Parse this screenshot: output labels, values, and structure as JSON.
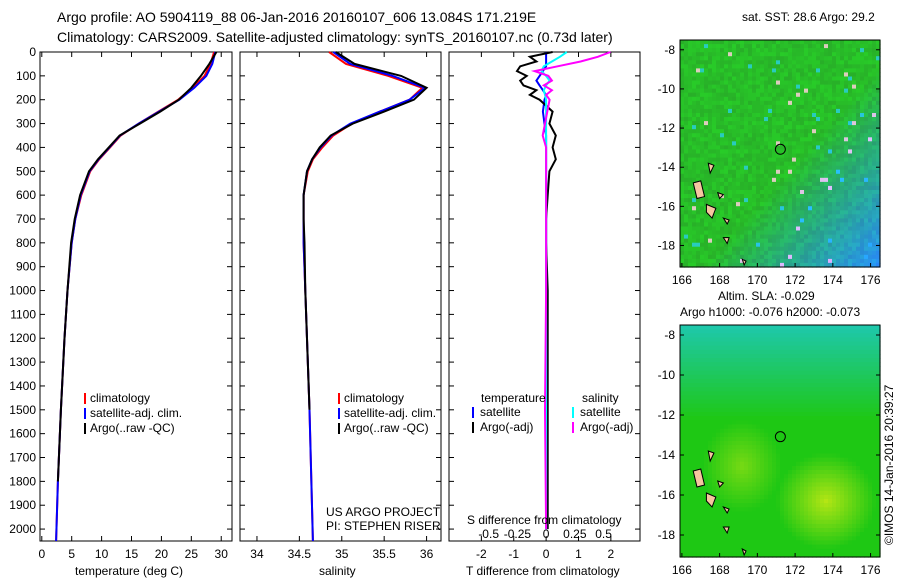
{
  "title_line1": "Argo profile: AO 5904119_88 06-Jan-2016 20160107_606 13.084S 171.219E",
  "title_line2": "Climatology: CARS2009. Satellite-adjusted climatology: synTS_20160107.nc (0.73d later)",
  "depth_ticks": [
    0,
    100,
    200,
    300,
    400,
    500,
    600,
    700,
    800,
    900,
    1000,
    1100,
    1200,
    1300,
    1400,
    1500,
    1600,
    1700,
    1800,
    1900,
    2000
  ],
  "colors": {
    "climatology": "#ff0000",
    "satellite": "#0000ff",
    "argo": "#000000",
    "sal_satellite": "#00ffff",
    "sal_argo": "#ff00ff"
  },
  "chart_data": [
    {
      "type": "line",
      "xlabel": "temperature (deg C)",
      "ylabel": "depth",
      "xlim": [
        -0.3,
        31.8
      ],
      "ylim": [
        2050,
        0
      ],
      "xticks": [
        0,
        5,
        10,
        15,
        20,
        25,
        30
      ],
      "legend": [
        "climatology",
        "satellite-adj. clim.",
        "Argo(..raw -QC)"
      ],
      "legend_position": "bottom-center",
      "depth": [
        0,
        50,
        100,
        150,
        200,
        250,
        300,
        350,
        400,
        450,
        500,
        600,
        700,
        800,
        1000,
        1200,
        1500,
        1800,
        2050
      ],
      "series": [
        {
          "name": "climatology",
          "color": "#ff0000",
          "values": [
            28.8,
            28.2,
            27.2,
            25.2,
            22.8,
            19.5,
            16.2,
            13.2,
            11.4,
            9.6,
            8.1,
            6.6,
            5.6,
            5.0,
            4.3,
            3.8,
            3.2,
            2.7,
            2.4
          ]
        },
        {
          "name": "satellite-adj. clim.",
          "color": "#0000ff",
          "values": [
            29.0,
            28.5,
            27.5,
            25.5,
            23.0,
            19.6,
            16.2,
            13.1,
            11.3,
            9.5,
            8.0,
            6.5,
            5.6,
            5.0,
            4.3,
            3.8,
            3.2,
            2.7,
            2.4
          ]
        },
        {
          "name": "Argo(..raw -QC)",
          "color": "#000000",
          "values": [
            29.2,
            28.0,
            26.6,
            25.0,
            22.9,
            19.8,
            16.4,
            13.0,
            11.2,
            9.4,
            7.9,
            6.4,
            5.5,
            4.9,
            4.3,
            3.8,
            3.2,
            2.7,
            null
          ]
        }
      ]
    },
    {
      "type": "line",
      "xlabel": "salinity",
      "ylabel": "depth",
      "xlim": [
        33.8,
        36.17
      ],
      "ylim": [
        2050,
        0
      ],
      "xticks": [
        34,
        34.5,
        35,
        35.5,
        36
      ],
      "legend": [
        "climatology",
        "satellite-adj. clim.",
        "Argo(..raw -QC)"
      ],
      "legend_position": "bottom-center",
      "annotation": [
        "US ARGO PROJECT",
        "PI: STEPHEN RISER"
      ],
      "depth": [
        0,
        50,
        100,
        150,
        200,
        250,
        300,
        350,
        400,
        450,
        500,
        600,
        700,
        800,
        1000,
        1500,
        2050
      ],
      "series": [
        {
          "name": "climatology",
          "color": "#ff0000",
          "values": [
            34.85,
            35.05,
            35.55,
            35.95,
            35.8,
            35.45,
            35.12,
            34.9,
            34.77,
            34.66,
            34.6,
            34.55,
            34.55,
            34.55,
            34.57,
            34.62,
            34.66
          ]
        },
        {
          "name": "satellite-adj. clim.",
          "color": "#0000ff",
          "values": [
            34.9,
            35.1,
            35.6,
            35.98,
            35.8,
            35.45,
            35.1,
            34.88,
            34.75,
            34.65,
            34.59,
            34.55,
            34.55,
            34.55,
            34.57,
            34.62,
            34.66
          ]
        },
        {
          "name": "Argo(..raw -QC)",
          "color": "#000000",
          "values": [
            34.93,
            35.15,
            35.7,
            36.0,
            35.85,
            35.5,
            35.13,
            34.87,
            34.74,
            34.65,
            34.59,
            34.55,
            34.55,
            34.56,
            34.57,
            34.62,
            null
          ]
        }
      ]
    },
    {
      "type": "line",
      "xlabel": "T difference from climatology",
      "xlabel2": "S difference from climatology",
      "xlim": [
        -3.0,
        2.9
      ],
      "ylim": [
        2050,
        0
      ],
      "xticks": [
        -2,
        -1,
        0,
        1,
        2
      ],
      "xticks_s": [
        -0.5,
        -0.25,
        0,
        0.25,
        0.5
      ],
      "legend_headers": [
        "temperature",
        "salinity"
      ],
      "legend": [
        "satellite",
        "Argo(-adj)",
        "satellite",
        "Argo(-adj)"
      ],
      "legend_position": "bottom-center",
      "depth": [
        0,
        20,
        40,
        60,
        80,
        100,
        120,
        140,
        160,
        180,
        200,
        250,
        300,
        350,
        400,
        450,
        500,
        600,
        700,
        800,
        1000,
        1500,
        2000
      ],
      "series": [
        {
          "name": "T satellite",
          "color": "#0000ff",
          "scale": "T",
          "values": [
            0,
            0,
            0,
            0,
            -0.1,
            -0.2,
            -0.3,
            -0.2,
            -0.1,
            0,
            -0.05,
            -0.1,
            -0.05,
            0,
            0,
            0,
            0,
            0,
            0,
            0,
            0,
            0,
            0
          ]
        },
        {
          "name": "T Argo(-adj)",
          "color": "#000000",
          "scale": "T",
          "values": [
            0.2,
            -0.5,
            -0.3,
            -0.8,
            -0.9,
            -0.6,
            -0.8,
            -0.7,
            -0.3,
            -0.5,
            -0.2,
            0.2,
            0.1,
            0.3,
            0.2,
            0.3,
            0.1,
            0.05,
            0,
            0,
            0.05,
            0.05,
            0.05
          ]
        },
        {
          "name": "S satellite",
          "color": "#00ffff",
          "scale": "S",
          "values": [
            0.18,
            0.12,
            0.05,
            -0.02,
            -0.04,
            0.0,
            0.03,
            0.0,
            -0.02,
            -0.01,
            0.0,
            0.0,
            0.0,
            0.0,
            0.0,
            0.0,
            0.0,
            0.0,
            0.0,
            0.0,
            0.0,
            0.0,
            0.0
          ]
        },
        {
          "name": "S Argo(-adj)",
          "color": "#ff00ff",
          "scale": "S",
          "values": [
            0.56,
            0.45,
            0.3,
            0.1,
            -0.1,
            0.02,
            0.05,
            -0.02,
            0.05,
            0.0,
            0.03,
            0.01,
            -0.01,
            -0.03,
            0.0,
            0.0,
            0.0,
            0.0,
            0.0,
            0.0,
            0.0,
            -0.01,
            0.0
          ]
        }
      ]
    },
    {
      "type": "heatmap",
      "title": "sat. SST: 28.6 Argo: 29.2",
      "xlim": [
        165.9,
        176.5
      ],
      "ylim": [
        -19.1,
        -7.5
      ],
      "xticks": [
        166,
        168,
        170,
        172,
        174,
        176
      ],
      "yticks": [
        -8,
        -10,
        -12,
        -14,
        -16,
        -18
      ],
      "marker": {
        "lon": 171.219,
        "lat": -13.084
      }
    },
    {
      "type": "heatmap",
      "title": "Altim. SLA: -0.029",
      "subtitle": "Argo h1000: -0.076 h2000: -0.073",
      "xlim": [
        165.9,
        176.5
      ],
      "ylim": [
        -19.1,
        -7.5
      ],
      "xticks": [
        166,
        168,
        170,
        172,
        174,
        176
      ],
      "yticks": [
        -8,
        -10,
        -12,
        -14,
        -16,
        -18
      ],
      "marker": {
        "lon": 171.219,
        "lat": -13.084
      }
    }
  ],
  "credit": "©IMOS 14-Jan-2016 20:39:27"
}
